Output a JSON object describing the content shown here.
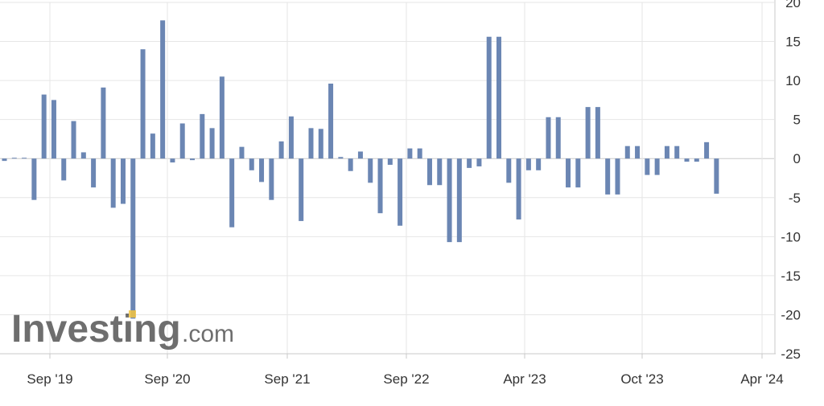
{
  "chart_data": {
    "type": "bar",
    "title": "",
    "xlabel": "",
    "ylabel": "",
    "ylim": [
      -25,
      20
    ],
    "y_ticks": [
      20,
      15,
      10,
      5,
      0,
      -5,
      -10,
      -15,
      -20,
      -25
    ],
    "y_axis_position": "right",
    "grid": true,
    "legend": "none",
    "x_tick_labels": [
      "Sep '19",
      "Sep '20",
      "Sep '21",
      "Sep '22",
      "Apr '23",
      "Oct '23",
      "Apr '24"
    ],
    "bar_color": "#6b86b3",
    "grid_color": "#e6e6e6",
    "axis_color": "#c8c8c8",
    "series": [
      {
        "values": [
          -0.3,
          0.1,
          0.1,
          -5.3,
          8.2,
          7.5,
          -2.8,
          4.8,
          0.8,
          -3.7,
          9.1,
          -6.3,
          -5.8,
          -20.5,
          14.0,
          3.2,
          17.7,
          -0.5,
          4.5,
          -0.2,
          5.7,
          3.9,
          10.5,
          -8.8,
          1.5,
          -1.5,
          -3.0,
          -5.3,
          2.2,
          5.4,
          -8.0,
          3.9,
          3.8,
          9.6,
          0.2,
          -1.6,
          0.9,
          -3.1,
          -7.0,
          -0.8,
          -8.6,
          1.3,
          1.3,
          -3.4,
          -3.4,
          -10.7,
          -10.7,
          -1.2,
          -1.0,
          15.6,
          15.6,
          -3.1,
          -7.8,
          -1.5,
          -1.5,
          5.3,
          5.3,
          -3.7,
          -3.7,
          6.6,
          6.6,
          -4.6,
          -4.6,
          1.6,
          1.6,
          -2.1,
          -2.1,
          1.6,
          1.6,
          -0.4,
          -0.4,
          2.1,
          -4.5
        ]
      }
    ]
  },
  "watermark": {
    "text": "Investing.com",
    "text_color": "#555555",
    "accent_color": "#f4c542"
  }
}
